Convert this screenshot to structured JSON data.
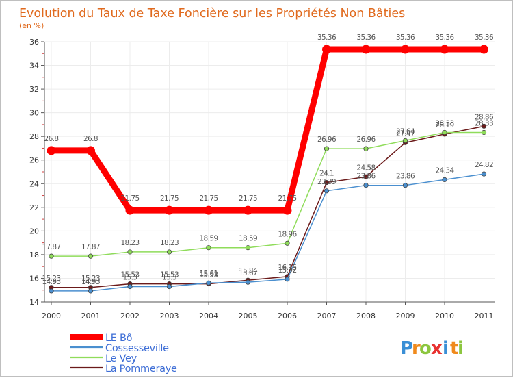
{
  "chart_data": {
    "type": "line",
    "title": "Evolution du Taux de Taxe Foncière sur les Propriétés Non Bâties",
    "subtitle": "(en %)",
    "x": [
      "2000",
      "2001",
      "2002",
      "2003",
      "2004",
      "2005",
      "2006",
      "2007",
      "2008",
      "2009",
      "2010",
      "2011"
    ],
    "ylim": [
      14,
      36
    ],
    "yticks": [
      14,
      16,
      18,
      20,
      22,
      24,
      26,
      28,
      30,
      32,
      34,
      36
    ],
    "legend_position": "bottom-left",
    "series": [
      {
        "name": "La Pommeraye",
        "color": "#6b1a1a",
        "values": [
          15.23,
          15.23,
          15.53,
          15.53,
          15.53,
          15.84,
          16.15,
          24.1,
          24.58,
          27.47,
          28.19,
          28.86
        ],
        "labels": [
          "15.23",
          "15.23",
          "15.53",
          "15.53",
          "15.53",
          "15.84",
          "16.15",
          "24.1",
          "24.58",
          "27.47",
          "28.19",
          "28.86"
        ]
      },
      {
        "name": "Cossesseville",
        "color": "#4a8fcf",
        "values": [
          14.93,
          14.93,
          15.3,
          15.3,
          15.61,
          15.67,
          15.92,
          23.39,
          23.86,
          23.86,
          24.34,
          24.82
        ],
        "labels": [
          "14.93",
          "14.93",
          "15.3",
          "15.3",
          "15.61",
          "15.67",
          "15.92",
          "23.39",
          "23.86",
          "23.86",
          "24.34",
          "24.82"
        ]
      },
      {
        "name": "Le Vey",
        "color": "#8fdc5a",
        "values": [
          17.87,
          17.87,
          18.23,
          18.23,
          18.59,
          18.59,
          18.96,
          26.96,
          26.96,
          27.64,
          28.33,
          28.33
        ],
        "labels": [
          "17.87",
          "17.87",
          "18.23",
          "18.23",
          "18.59",
          "18.59",
          "18.96",
          "26.96",
          "26.96",
          "27.64",
          "28.33",
          "28.33"
        ]
      },
      {
        "name": "LE Bô",
        "color": "#ff0000",
        "values": [
          26.8,
          26.8,
          21.75,
          21.75,
          21.75,
          21.75,
          21.75,
          35.36,
          35.36,
          35.36,
          35.36,
          35.36
        ],
        "labels": [
          "26.8",
          "26.8",
          "21.75",
          "21.75",
          "21.75",
          "21.75",
          "21.75",
          "35.36",
          "35.36",
          "35.36",
          "35.36",
          "35.36"
        ]
      }
    ],
    "legend": [
      "LE Bô",
      "Cossesseville",
      "Le Vey",
      "La Pommeraye"
    ]
  },
  "brand": {
    "letters": [
      "P",
      "r",
      "o",
      "x",
      "i",
      "t",
      "i"
    ],
    "colors": [
      "#3a8fd6",
      "#f08a1c",
      "#8cc63f",
      "#e8312f",
      "#3a8fd6",
      "#f08a1c",
      "#8cc63f"
    ]
  }
}
